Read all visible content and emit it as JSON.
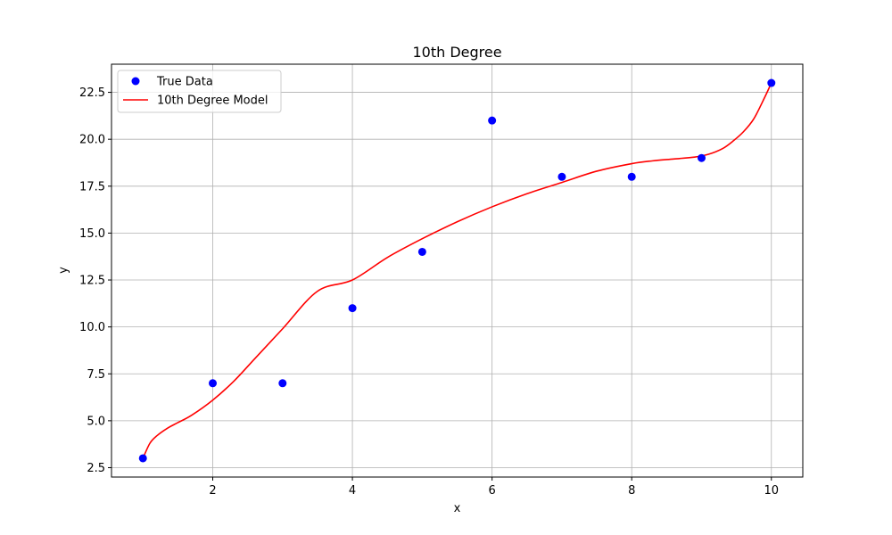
{
  "chart_data": {
    "type": "scatter",
    "title": "10th Degree",
    "xlabel": "x",
    "ylabel": "y",
    "xlim": [
      0.55,
      10.45
    ],
    "ylim": [
      2.0,
      24.0
    ],
    "x_ticks": [
      2,
      4,
      6,
      8,
      10
    ],
    "y_ticks": [
      2.5,
      5.0,
      7.5,
      10.0,
      12.5,
      15.0,
      17.5,
      20.0,
      22.5
    ],
    "grid": true,
    "legend_position": "top-left",
    "series": [
      {
        "name": "True Data",
        "kind": "scatter",
        "color": "#0000ff",
        "x": [
          1,
          2,
          3,
          4,
          5,
          6,
          7,
          8,
          9,
          10
        ],
        "y": [
          3,
          7,
          7,
          11,
          14,
          21,
          18,
          18,
          19,
          23
        ]
      },
      {
        "name": "10th Degree Model",
        "kind": "line",
        "color": "#ff0000",
        "x": [
          1.0,
          1.1,
          1.2,
          1.35,
          1.5,
          1.7,
          2.0,
          2.3,
          2.6,
          3.0,
          3.5,
          4.0,
          4.5,
          5.0,
          5.5,
          6.0,
          6.5,
          7.0,
          7.5,
          8.0,
          8.3,
          8.6,
          8.9,
          9.1,
          9.3,
          9.45,
          9.6,
          9.75,
          9.9,
          10.0
        ],
        "y": [
          3.0,
          3.8,
          4.2,
          4.6,
          4.9,
          5.3,
          6.1,
          7.1,
          8.3,
          9.9,
          11.9,
          12.5,
          13.7,
          14.7,
          15.6,
          16.4,
          17.1,
          17.7,
          18.3,
          18.7,
          18.85,
          18.95,
          19.05,
          19.2,
          19.5,
          19.9,
          20.4,
          21.1,
          22.2,
          23.0
        ]
      }
    ]
  }
}
